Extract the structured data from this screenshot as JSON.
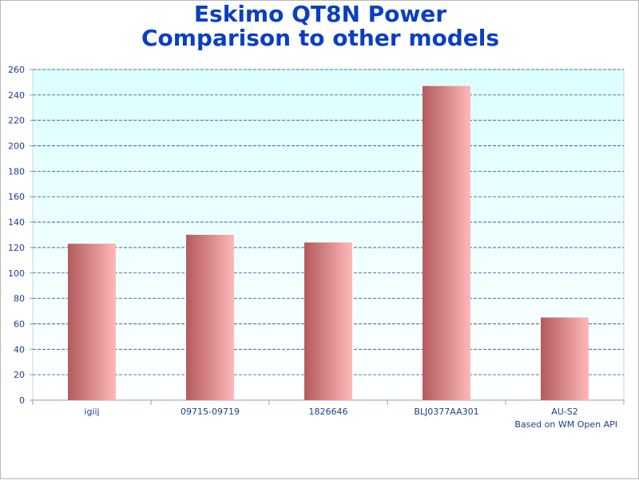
{
  "title_line1": "Eskimo QT8N Power",
  "title_line2": "Comparison to other models",
  "footer": "Based on WM Open API",
  "colors": {
    "title": "#0a3fc4",
    "plot_bg_top": "#dcffff",
    "plot_bg_bottom": "#ffffff",
    "grid": "#2a4d8f",
    "bar_dark": "#b35a5e",
    "bar_light": "#ffb8b8",
    "tick_text": "#1a3f8c"
  },
  "chart_data": {
    "type": "bar",
    "title": "Eskimo QT8N Power Comparison to other models",
    "categories": [
      "igiij",
      "09715-09719",
      "1826646",
      "BLJ0377AA301",
      "AU-S2"
    ],
    "values": [
      123,
      130,
      124,
      247,
      65
    ],
    "xlabel": "",
    "ylabel": "",
    "ylim": [
      0,
      260
    ],
    "yticks": [
      0,
      20,
      40,
      60,
      80,
      100,
      120,
      140,
      160,
      180,
      200,
      220,
      240,
      260
    ],
    "grid": true,
    "legend": "none"
  }
}
